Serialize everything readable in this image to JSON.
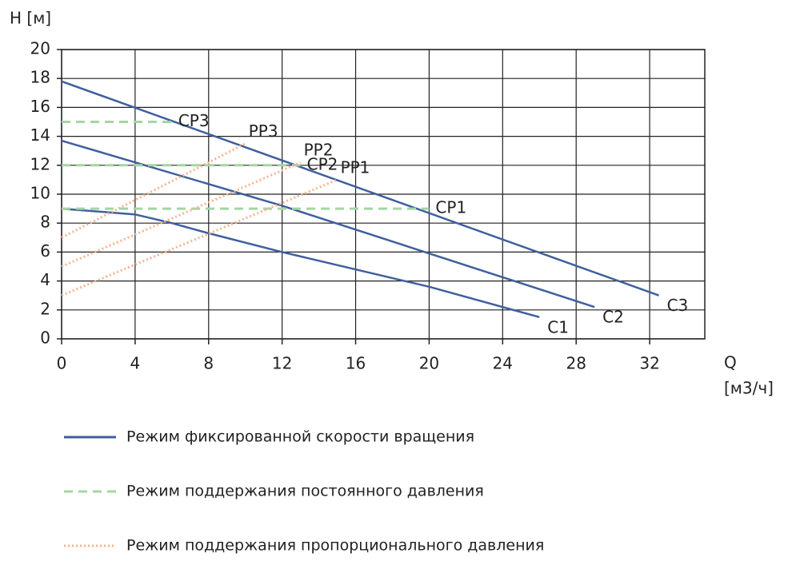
{
  "chart_data": {
    "type": "line",
    "ylabel": "H [м]",
    "xlabel": [
      "Q",
      "[м3/ч]"
    ],
    "xlim": [
      0,
      35
    ],
    "ylim": [
      0,
      20
    ],
    "xticks": [
      0,
      4,
      8,
      12,
      16,
      20,
      24,
      28,
      32
    ],
    "yticks": [
      0,
      2,
      4,
      6,
      8,
      10,
      12,
      14,
      16,
      18,
      20
    ],
    "grid": true,
    "series": [
      {
        "name": "Режим фиксированной скорости вращения",
        "color": "#3f5f9e",
        "style": "solid",
        "lines": [
          {
            "label": "C1",
            "x": [
              0,
              4,
              6,
              8,
              12,
              20,
              26
            ],
            "y": [
              9,
              8.6,
              8,
              7.3,
              6,
              3.6,
              1.5
            ]
          },
          {
            "label": "C2",
            "x": [
              0,
              12,
              29
            ],
            "y": [
              13.7,
              9.2,
              2.2
            ]
          },
          {
            "label": "C3",
            "x": [
              0,
              32.5
            ],
            "y": [
              17.8,
              3
            ]
          }
        ]
      },
      {
        "name": "Режим поддержания постоянного давления",
        "color": "#a3d6a3",
        "style": "dashed",
        "lines": [
          {
            "label": "CP1",
            "x": [
              0,
              20
            ],
            "y": [
              9,
              9
            ]
          },
          {
            "label": "CP2",
            "x": [
              0,
              13
            ],
            "y": [
              12,
              12
            ]
          },
          {
            "label": "CP3",
            "x": [
              0,
              6
            ],
            "y": [
              15,
              15
            ]
          }
        ]
      },
      {
        "name": "Режим поддержания пропорционального давления",
        "color": "#f5b48e",
        "style": "dotted",
        "lines": [
          {
            "label": "PP1",
            "x": [
              0,
              15
            ],
            "y": [
              3,
              11
            ]
          },
          {
            "label": "PP2",
            "x": [
              0,
              13
            ],
            "y": [
              5,
              12.2
            ]
          },
          {
            "label": "PP3",
            "x": [
              0,
              10
            ],
            "y": [
              7,
              13.5
            ]
          }
        ]
      }
    ]
  }
}
